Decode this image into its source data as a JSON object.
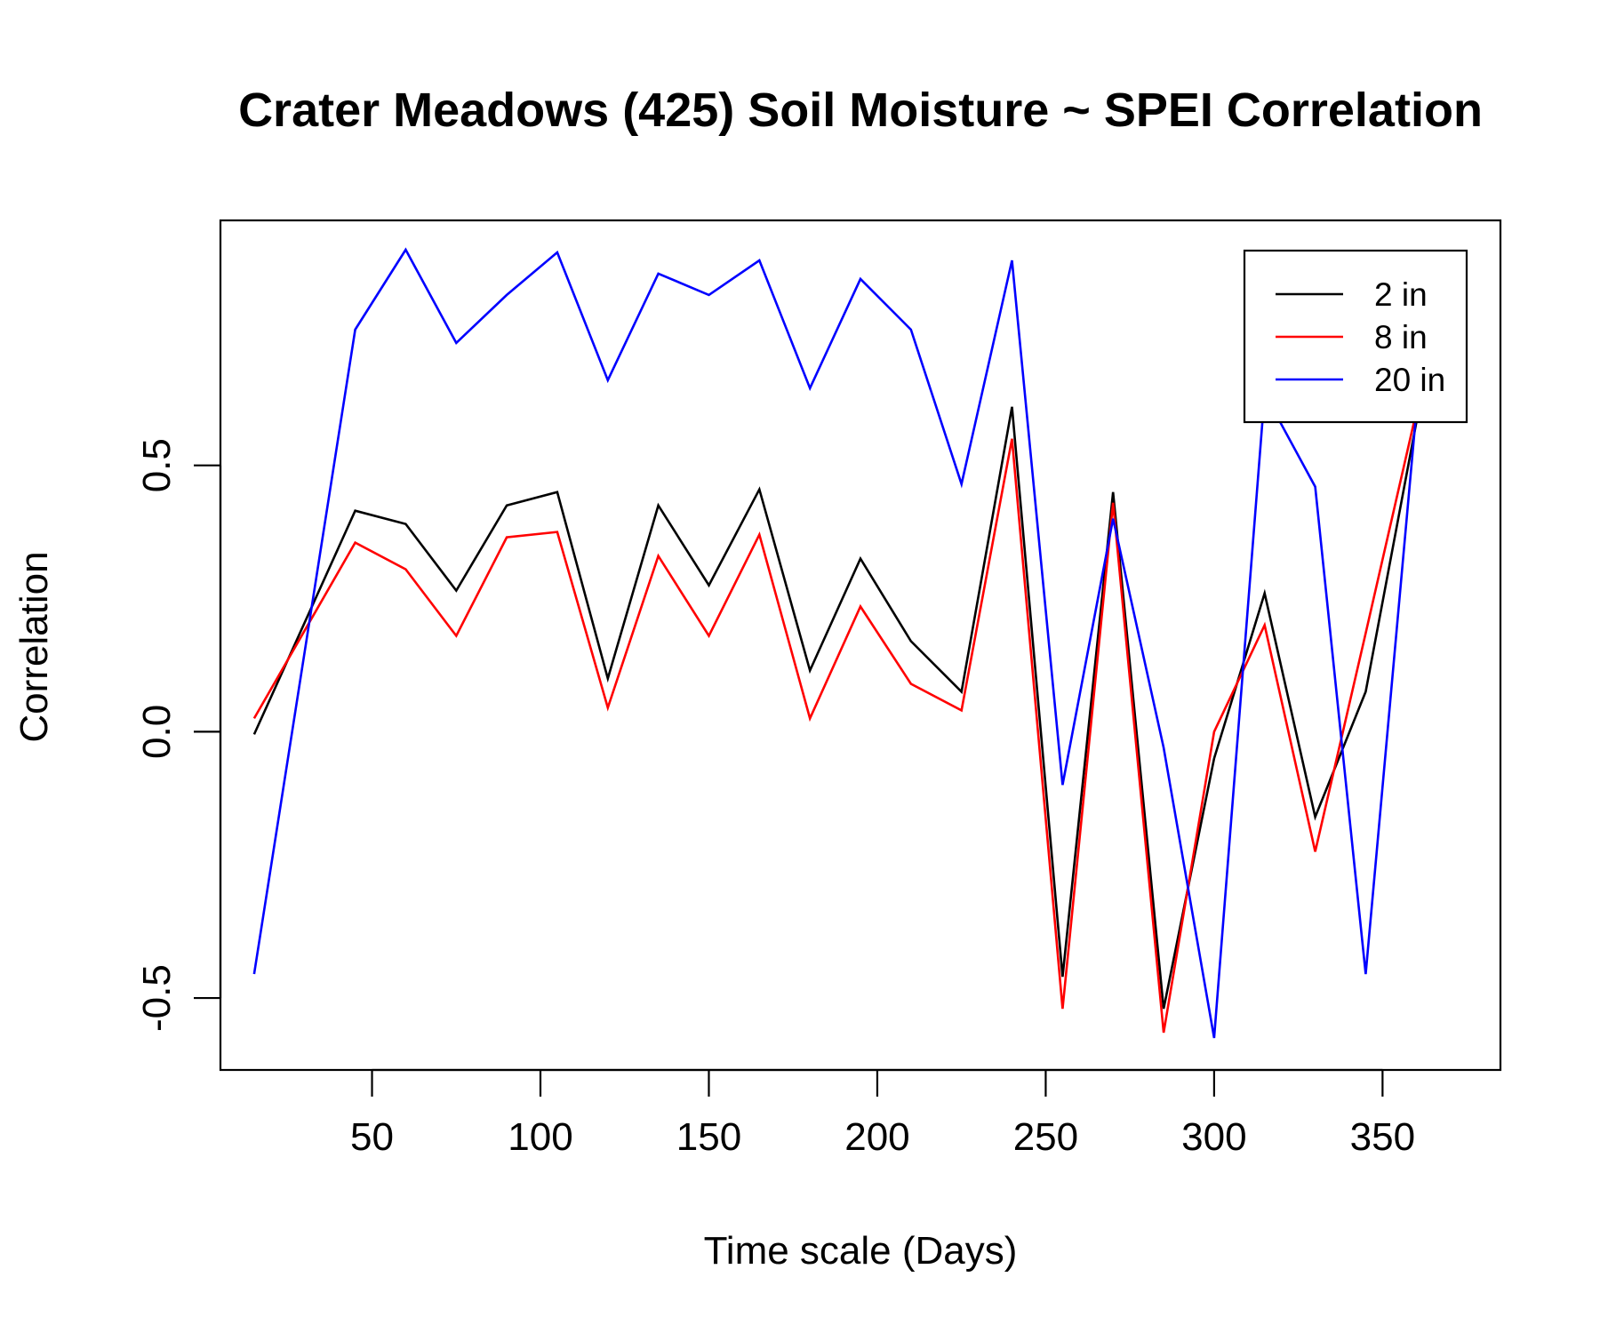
{
  "chart_data": {
    "type": "line",
    "title": "Crater Meadows (425) Soil Moisture ~ SPEI Correlation",
    "xlabel": "Time scale (Days)",
    "ylabel": "Correlation",
    "x": [
      15,
      45,
      60,
      75,
      90,
      105,
      120,
      135,
      150,
      165,
      180,
      195,
      210,
      225,
      240,
      255,
      270,
      285,
      300,
      315,
      330,
      345,
      360
    ],
    "series": [
      {
        "name": "2 in",
        "color": "#000000",
        "values": [
          -0.005,
          0.415,
          0.39,
          0.265,
          0.425,
          0.45,
          0.1,
          0.425,
          0.275,
          0.455,
          0.115,
          0.325,
          0.17,
          0.075,
          0.61,
          -0.46,
          0.45,
          -0.52,
          -0.05,
          0.26,
          -0.16,
          0.075,
          0.58
        ]
      },
      {
        "name": "8 in",
        "color": "#ff0000",
        "values": [
          0.025,
          0.355,
          0.305,
          0.18,
          0.365,
          0.375,
          0.045,
          0.33,
          0.18,
          0.37,
          0.025,
          0.235,
          0.09,
          0.04,
          0.55,
          -0.52,
          0.43,
          -0.565,
          0.0,
          0.2,
          -0.225,
          0.185,
          0.6
        ]
      },
      {
        "name": "20 in",
        "color": "#0000ff",
        "values": [
          -0.455,
          0.755,
          0.905,
          0.73,
          0.82,
          0.9,
          0.66,
          0.86,
          0.82,
          0.885,
          0.645,
          0.85,
          0.755,
          0.465,
          0.885,
          -0.1,
          0.4,
          -0.03,
          -0.575,
          0.635,
          0.46,
          -0.455,
          0.6
        ]
      }
    ],
    "xlim": [
      5,
      385
    ],
    "ylim": [
      -0.635,
      0.96
    ],
    "x_ticks": [
      50,
      100,
      150,
      200,
      250,
      300,
      350
    ],
    "x_tick_labels": [
      "50",
      "100",
      "150",
      "200",
      "250",
      "300",
      "350"
    ],
    "y_ticks": [
      -0.5,
      0.0,
      0.5
    ],
    "y_tick_labels": [
      "-0.5",
      "0.0",
      "0.5"
    ],
    "grid": false,
    "legend_placement": "top-right"
  }
}
